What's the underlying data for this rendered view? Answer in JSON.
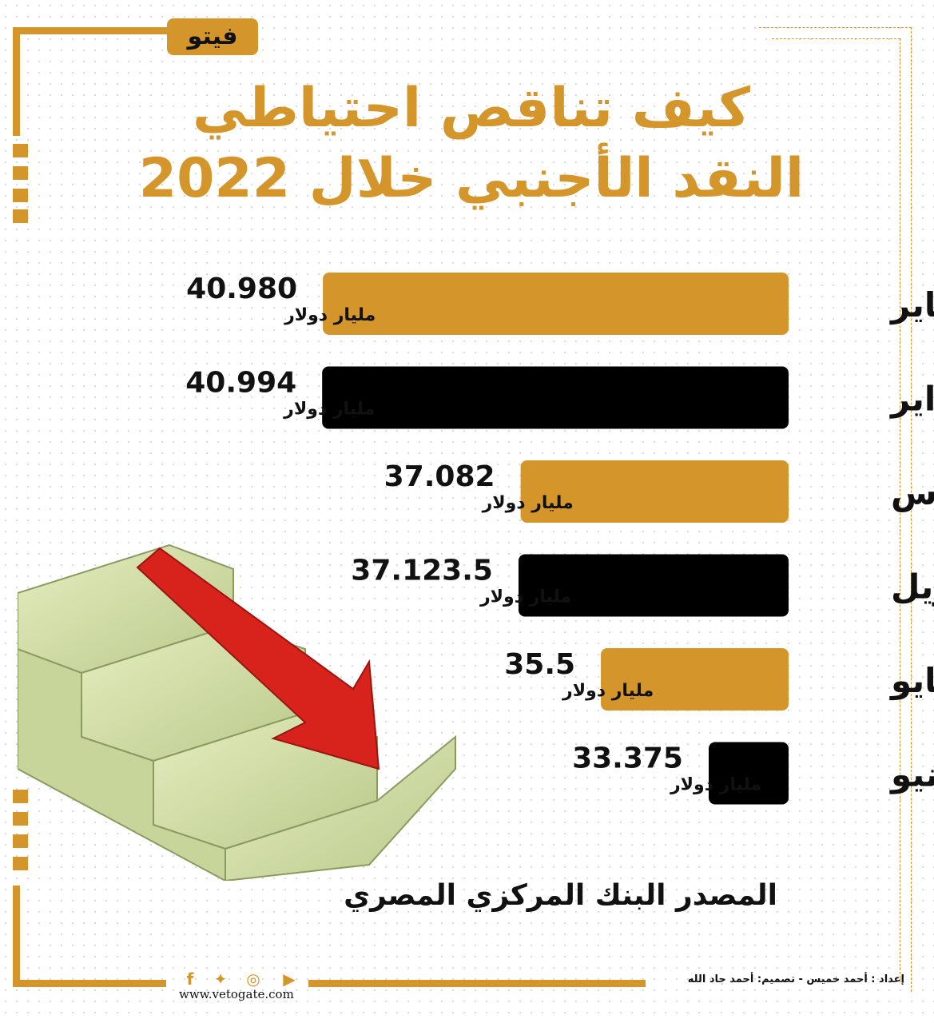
{
  "logo_text": "فيتو",
  "title_line1": "كيف تناقص احتياطي",
  "title_line2": "النقد الأجنبي خلال 2022",
  "colors": {
    "gold": "#d4952a",
    "black": "#000000"
  },
  "chart_data": {
    "type": "bar",
    "orientation": "horizontal",
    "categories": [
      "يناير",
      "فبراير",
      "مارس",
      "إبريل",
      "مايو",
      "يونيو"
    ],
    "values": [
      40.98,
      40.994,
      37.082,
      37.1235,
      35.5,
      33.375
    ],
    "value_labels": [
      "40.980",
      "40.994",
      "37.082",
      "37.123.5",
      "35.5",
      "33.375"
    ],
    "unit": "مليار دولار",
    "bar_colors": [
      "#d4952a",
      "#000000",
      "#d4952a",
      "#000000",
      "#d4952a",
      "#000000"
    ]
  },
  "source": "المصدر البنك المركزي المصري",
  "credit": "إعداد : أحمد خميس -   تصميم: أحمد جاد الله",
  "website": "www.vetogate.com",
  "social_icons": [
    "youtube-icon",
    "instagram-icon",
    "twitter-icon",
    "facebook-icon"
  ]
}
